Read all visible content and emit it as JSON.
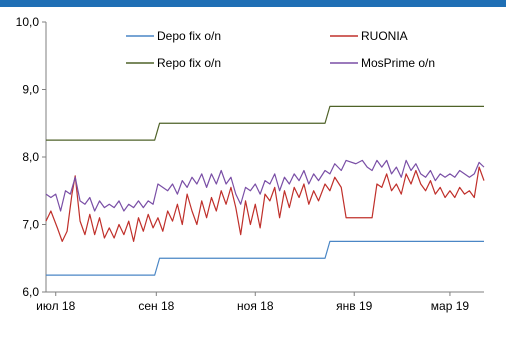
{
  "chart_data": {
    "type": "line",
    "title": "",
    "xlabel": "",
    "ylabel": "",
    "ylim": [
      6.0,
      10.0
    ],
    "y_ticks": [
      6.0,
      7.0,
      8.0,
      9.0,
      10.0
    ],
    "y_tick_labels": [
      "6,0",
      "7,0",
      "8,0",
      "9,0",
      "10,0"
    ],
    "xlim": [
      "2018-06-25",
      "2019-03-22"
    ],
    "x_ticks": [
      {
        "date": "2018-07-01",
        "label": "июл 18"
      },
      {
        "date": "2018-09-01",
        "label": "сен 18"
      },
      {
        "date": "2018-11-01",
        "label": "ноя 18"
      },
      {
        "date": "2019-01-01",
        "label": "янв 19"
      },
      {
        "date": "2019-03-01",
        "label": "мар 19"
      }
    ],
    "grid": false,
    "legend_position": "top",
    "series": [
      {
        "name": "Depo fix o/n",
        "color": "#4a86c5",
        "points": [
          [
            "2018-06-25",
            6.25
          ],
          [
            "2018-08-31",
            6.25
          ],
          [
            "2018-09-03",
            6.5
          ],
          [
            "2018-12-14",
            6.5
          ],
          [
            "2018-12-17",
            6.75
          ],
          [
            "2019-03-22",
            6.75
          ]
        ]
      },
      {
        "name": "RUONIA",
        "color": "#c0302b",
        "points": [
          [
            "2018-06-25",
            7.05
          ],
          [
            "2018-06-28",
            7.2
          ],
          [
            "2018-07-02",
            6.95
          ],
          [
            "2018-07-05",
            6.75
          ],
          [
            "2018-07-08",
            6.9
          ],
          [
            "2018-07-11",
            7.45
          ],
          [
            "2018-07-13",
            7.72
          ],
          [
            "2018-07-16",
            7.05
          ],
          [
            "2018-07-19",
            6.85
          ],
          [
            "2018-07-22",
            7.15
          ],
          [
            "2018-07-25",
            6.85
          ],
          [
            "2018-07-28",
            7.1
          ],
          [
            "2018-07-31",
            6.8
          ],
          [
            "2018-08-03",
            6.95
          ],
          [
            "2018-08-06",
            6.8
          ],
          [
            "2018-08-09",
            7.0
          ],
          [
            "2018-08-12",
            6.85
          ],
          [
            "2018-08-15",
            7.05
          ],
          [
            "2018-08-18",
            6.75
          ],
          [
            "2018-08-21",
            7.1
          ],
          [
            "2018-08-24",
            6.9
          ],
          [
            "2018-08-27",
            7.15
          ],
          [
            "2018-08-30",
            6.95
          ],
          [
            "2018-09-02",
            7.1
          ],
          [
            "2018-09-05",
            6.9
          ],
          [
            "2018-09-08",
            7.2
          ],
          [
            "2018-09-11",
            7.05
          ],
          [
            "2018-09-14",
            7.3
          ],
          [
            "2018-09-17",
            7.0
          ],
          [
            "2018-09-20",
            7.45
          ],
          [
            "2018-09-23",
            7.2
          ],
          [
            "2018-09-26",
            7.0
          ],
          [
            "2018-09-29",
            7.35
          ],
          [
            "2018-10-02",
            7.1
          ],
          [
            "2018-10-05",
            7.4
          ],
          [
            "2018-10-08",
            7.2
          ],
          [
            "2018-10-11",
            7.5
          ],
          [
            "2018-10-14",
            7.3
          ],
          [
            "2018-10-17",
            7.55
          ],
          [
            "2018-10-20",
            7.25
          ],
          [
            "2018-10-23",
            6.85
          ],
          [
            "2018-10-26",
            7.35
          ],
          [
            "2018-10-29",
            7.0
          ],
          [
            "2018-11-01",
            7.3
          ],
          [
            "2018-11-04",
            6.95
          ],
          [
            "2018-11-07",
            7.45
          ],
          [
            "2018-11-10",
            7.35
          ],
          [
            "2018-11-13",
            7.55
          ],
          [
            "2018-11-16",
            7.1
          ],
          [
            "2018-11-19",
            7.5
          ],
          [
            "2018-11-22",
            7.25
          ],
          [
            "2018-11-25",
            7.55
          ],
          [
            "2018-11-28",
            7.4
          ],
          [
            "2018-12-01",
            7.6
          ],
          [
            "2018-12-04",
            7.3
          ],
          [
            "2018-12-07",
            7.5
          ],
          [
            "2018-12-10",
            7.35
          ],
          [
            "2018-12-14",
            7.6
          ],
          [
            "2018-12-17",
            7.5
          ],
          [
            "2018-12-20",
            7.7
          ],
          [
            "2018-12-24",
            7.55
          ],
          [
            "2018-12-27",
            7.1
          ],
          [
            "2019-01-02",
            7.1
          ],
          [
            "2019-01-09",
            7.1
          ],
          [
            "2019-01-12",
            7.1
          ],
          [
            "2019-01-15",
            7.6
          ],
          [
            "2019-01-18",
            7.55
          ],
          [
            "2019-01-21",
            7.75
          ],
          [
            "2019-01-24",
            7.5
          ],
          [
            "2019-01-27",
            7.6
          ],
          [
            "2019-01-30",
            7.45
          ],
          [
            "2019-02-02",
            7.75
          ],
          [
            "2019-02-05",
            7.6
          ],
          [
            "2019-02-08",
            7.8
          ],
          [
            "2019-02-11",
            7.6
          ],
          [
            "2019-02-14",
            7.5
          ],
          [
            "2019-02-17",
            7.65
          ],
          [
            "2019-02-20",
            7.45
          ],
          [
            "2019-02-23",
            7.55
          ],
          [
            "2019-02-26",
            7.4
          ],
          [
            "2019-03-01",
            7.5
          ],
          [
            "2019-03-04",
            7.4
          ],
          [
            "2019-03-07",
            7.55
          ],
          [
            "2019-03-10",
            7.45
          ],
          [
            "2019-03-13",
            7.5
          ],
          [
            "2019-03-16",
            7.4
          ],
          [
            "2019-03-19",
            7.85
          ],
          [
            "2019-03-22",
            7.65
          ]
        ]
      },
      {
        "name": "Repo fix o/n",
        "color": "#4f6228",
        "points": [
          [
            "2018-06-25",
            8.25
          ],
          [
            "2018-08-31",
            8.25
          ],
          [
            "2018-09-03",
            8.5
          ],
          [
            "2018-12-14",
            8.5
          ],
          [
            "2018-12-17",
            8.75
          ],
          [
            "2019-03-22",
            8.75
          ]
        ]
      },
      {
        "name": "MosPrime o/n",
        "color": "#7a4fa6",
        "points": [
          [
            "2018-06-25",
            7.45
          ],
          [
            "2018-06-28",
            7.4
          ],
          [
            "2018-07-01",
            7.45
          ],
          [
            "2018-07-04",
            7.2
          ],
          [
            "2018-07-07",
            7.5
          ],
          [
            "2018-07-10",
            7.45
          ],
          [
            "2018-07-13",
            7.7
          ],
          [
            "2018-07-16",
            7.35
          ],
          [
            "2018-07-19",
            7.3
          ],
          [
            "2018-07-22",
            7.4
          ],
          [
            "2018-07-25",
            7.2
          ],
          [
            "2018-07-28",
            7.35
          ],
          [
            "2018-07-31",
            7.25
          ],
          [
            "2018-08-03",
            7.3
          ],
          [
            "2018-08-06",
            7.25
          ],
          [
            "2018-08-09",
            7.35
          ],
          [
            "2018-08-12",
            7.2
          ],
          [
            "2018-08-15",
            7.3
          ],
          [
            "2018-08-18",
            7.25
          ],
          [
            "2018-08-21",
            7.35
          ],
          [
            "2018-08-24",
            7.25
          ],
          [
            "2018-08-27",
            7.35
          ],
          [
            "2018-08-30",
            7.3
          ],
          [
            "2018-09-02",
            7.6
          ],
          [
            "2018-09-05",
            7.55
          ],
          [
            "2018-09-08",
            7.5
          ],
          [
            "2018-09-11",
            7.6
          ],
          [
            "2018-09-14",
            7.45
          ],
          [
            "2018-09-17",
            7.65
          ],
          [
            "2018-09-20",
            7.55
          ],
          [
            "2018-09-23",
            7.7
          ],
          [
            "2018-09-26",
            7.6
          ],
          [
            "2018-09-29",
            7.75
          ],
          [
            "2018-10-02",
            7.55
          ],
          [
            "2018-10-05",
            7.75
          ],
          [
            "2018-10-08",
            7.6
          ],
          [
            "2018-10-11",
            7.8
          ],
          [
            "2018-10-14",
            7.6
          ],
          [
            "2018-10-17",
            7.7
          ],
          [
            "2018-10-20",
            7.45
          ],
          [
            "2018-10-23",
            7.3
          ],
          [
            "2018-10-26",
            7.55
          ],
          [
            "2018-10-29",
            7.5
          ],
          [
            "2018-11-01",
            7.6
          ],
          [
            "2018-11-04",
            7.45
          ],
          [
            "2018-11-07",
            7.65
          ],
          [
            "2018-11-10",
            7.6
          ],
          [
            "2018-11-13",
            7.75
          ],
          [
            "2018-11-16",
            7.5
          ],
          [
            "2018-11-19",
            7.7
          ],
          [
            "2018-11-22",
            7.6
          ],
          [
            "2018-11-25",
            7.75
          ],
          [
            "2018-11-28",
            7.65
          ],
          [
            "2018-12-01",
            7.8
          ],
          [
            "2018-12-04",
            7.6
          ],
          [
            "2018-12-07",
            7.75
          ],
          [
            "2018-12-10",
            7.65
          ],
          [
            "2018-12-14",
            7.8
          ],
          [
            "2018-12-17",
            7.75
          ],
          [
            "2018-12-20",
            7.9
          ],
          [
            "2018-12-24",
            7.8
          ],
          [
            "2018-12-27",
            7.95
          ],
          [
            "2019-01-02",
            7.9
          ],
          [
            "2019-01-06",
            7.95
          ],
          [
            "2019-01-09",
            7.85
          ],
          [
            "2019-01-12",
            7.8
          ],
          [
            "2019-01-15",
            7.95
          ],
          [
            "2019-01-18",
            7.85
          ],
          [
            "2019-01-21",
            7.95
          ],
          [
            "2019-01-24",
            7.75
          ],
          [
            "2019-01-27",
            7.85
          ],
          [
            "2019-01-30",
            7.7
          ],
          [
            "2019-02-02",
            7.95
          ],
          [
            "2019-02-05",
            7.8
          ],
          [
            "2019-02-08",
            7.9
          ],
          [
            "2019-02-11",
            7.75
          ],
          [
            "2019-02-14",
            7.7
          ],
          [
            "2019-02-17",
            7.8
          ],
          [
            "2019-02-20",
            7.65
          ],
          [
            "2019-02-23",
            7.75
          ],
          [
            "2019-02-26",
            7.7
          ],
          [
            "2019-03-01",
            7.75
          ],
          [
            "2019-03-04",
            7.7
          ],
          [
            "2019-03-07",
            7.8
          ],
          [
            "2019-03-10",
            7.75
          ],
          [
            "2019-03-13",
            7.7
          ],
          [
            "2019-03-16",
            7.75
          ],
          [
            "2019-03-19",
            7.92
          ],
          [
            "2019-03-22",
            7.85
          ]
        ]
      }
    ],
    "legend_order": [
      "Depo fix o/n",
      "RUONIA",
      "Repo fix o/n",
      "MosPrime o/n"
    ]
  }
}
